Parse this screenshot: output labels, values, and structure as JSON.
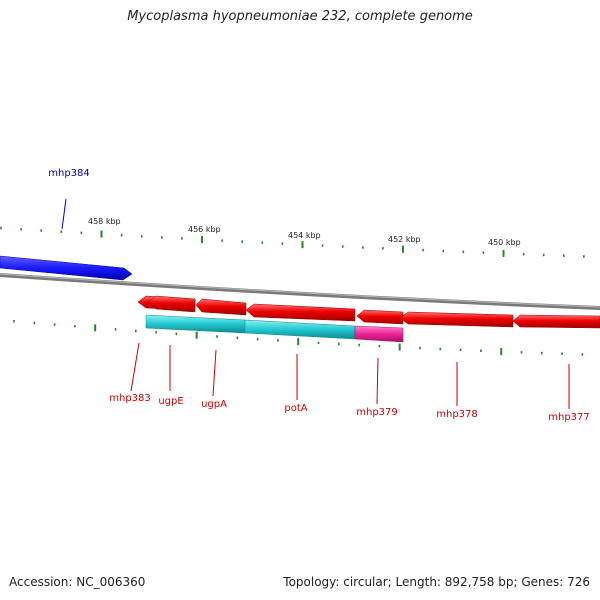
{
  "title": "Mycoplasma hyopneumoniae 232, complete genome",
  "footer": {
    "accession": "Accession: NC_006360",
    "summary": "Topology: circular; Length: 892,758 bp; Genes: 726"
  },
  "scale_labels": [
    "458 kbp",
    "456 kbp",
    "454 kbp",
    "452 kbp",
    "450 kbp"
  ],
  "colors": {
    "forward_gene": "#1a1aff",
    "reverse_gene": "#ee0000",
    "cyan_gene": "#20c8d0",
    "magenta_gene": "#ee2299",
    "backbone": "#888888",
    "tick": "#228822",
    "forward_label": "#0000aa",
    "reverse_label": "#cc0000"
  },
  "genes": [
    {
      "name": "mhp384",
      "strand": "forward"
    },
    {
      "name": "mhp383",
      "strand": "reverse"
    },
    {
      "name": "ugpE",
      "strand": "reverse"
    },
    {
      "name": "ugpA",
      "strand": "reverse"
    },
    {
      "name": "potA",
      "strand": "reverse"
    },
    {
      "name": "mhp379",
      "strand": "reverse"
    },
    {
      "name": "mhp378",
      "strand": "reverse"
    },
    {
      "name": "mhp377",
      "strand": "reverse"
    }
  ]
}
